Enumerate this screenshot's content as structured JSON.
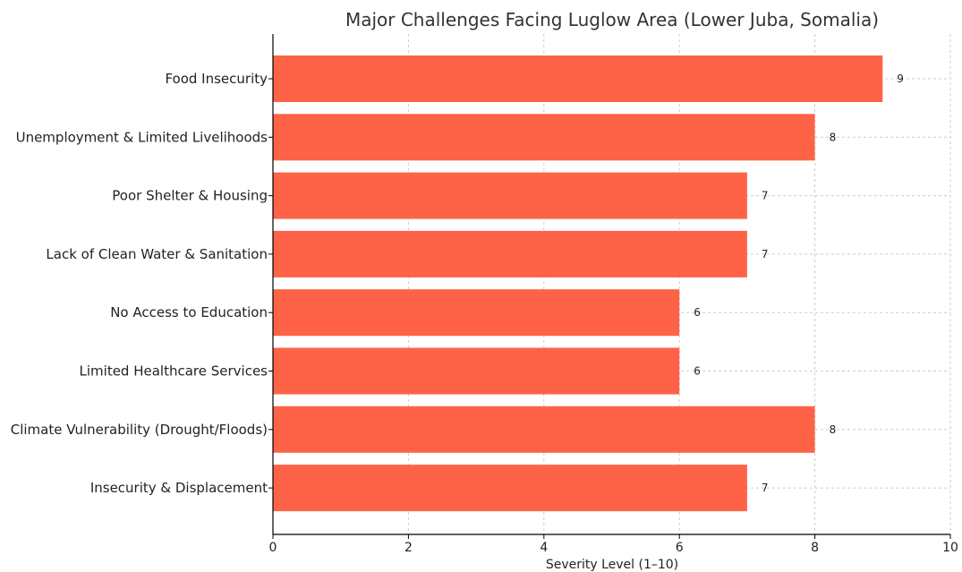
{
  "chart_data": {
    "type": "bar",
    "orientation": "horizontal",
    "title": "Major Challenges Facing Luglow Area (Lower Juba, Somalia)",
    "xlabel": "Severity Level (1–10)",
    "ylabel": "",
    "categories": [
      "Food Insecurity",
      "Unemployment & Limited Livelihoods",
      "Poor Shelter & Housing",
      "Lack of Clean Water & Sanitation",
      "No Access to Education",
      "Limited Healthcare Services",
      "Climate Vulnerability (Drought/Floods)",
      "Insecurity & Displacement"
    ],
    "values": [
      9,
      8,
      7,
      7,
      6,
      6,
      8,
      7
    ],
    "data_labels": [
      "9",
      "8",
      "7",
      "7",
      "6",
      "6",
      "8",
      "7"
    ],
    "xlim": [
      0,
      10
    ],
    "xticks": [
      0,
      2,
      4,
      6,
      8,
      10
    ],
    "xtick_labels": [
      "0",
      "2",
      "4",
      "6",
      "8",
      "10"
    ],
    "grid": true,
    "bar_color": "#FF6347"
  }
}
